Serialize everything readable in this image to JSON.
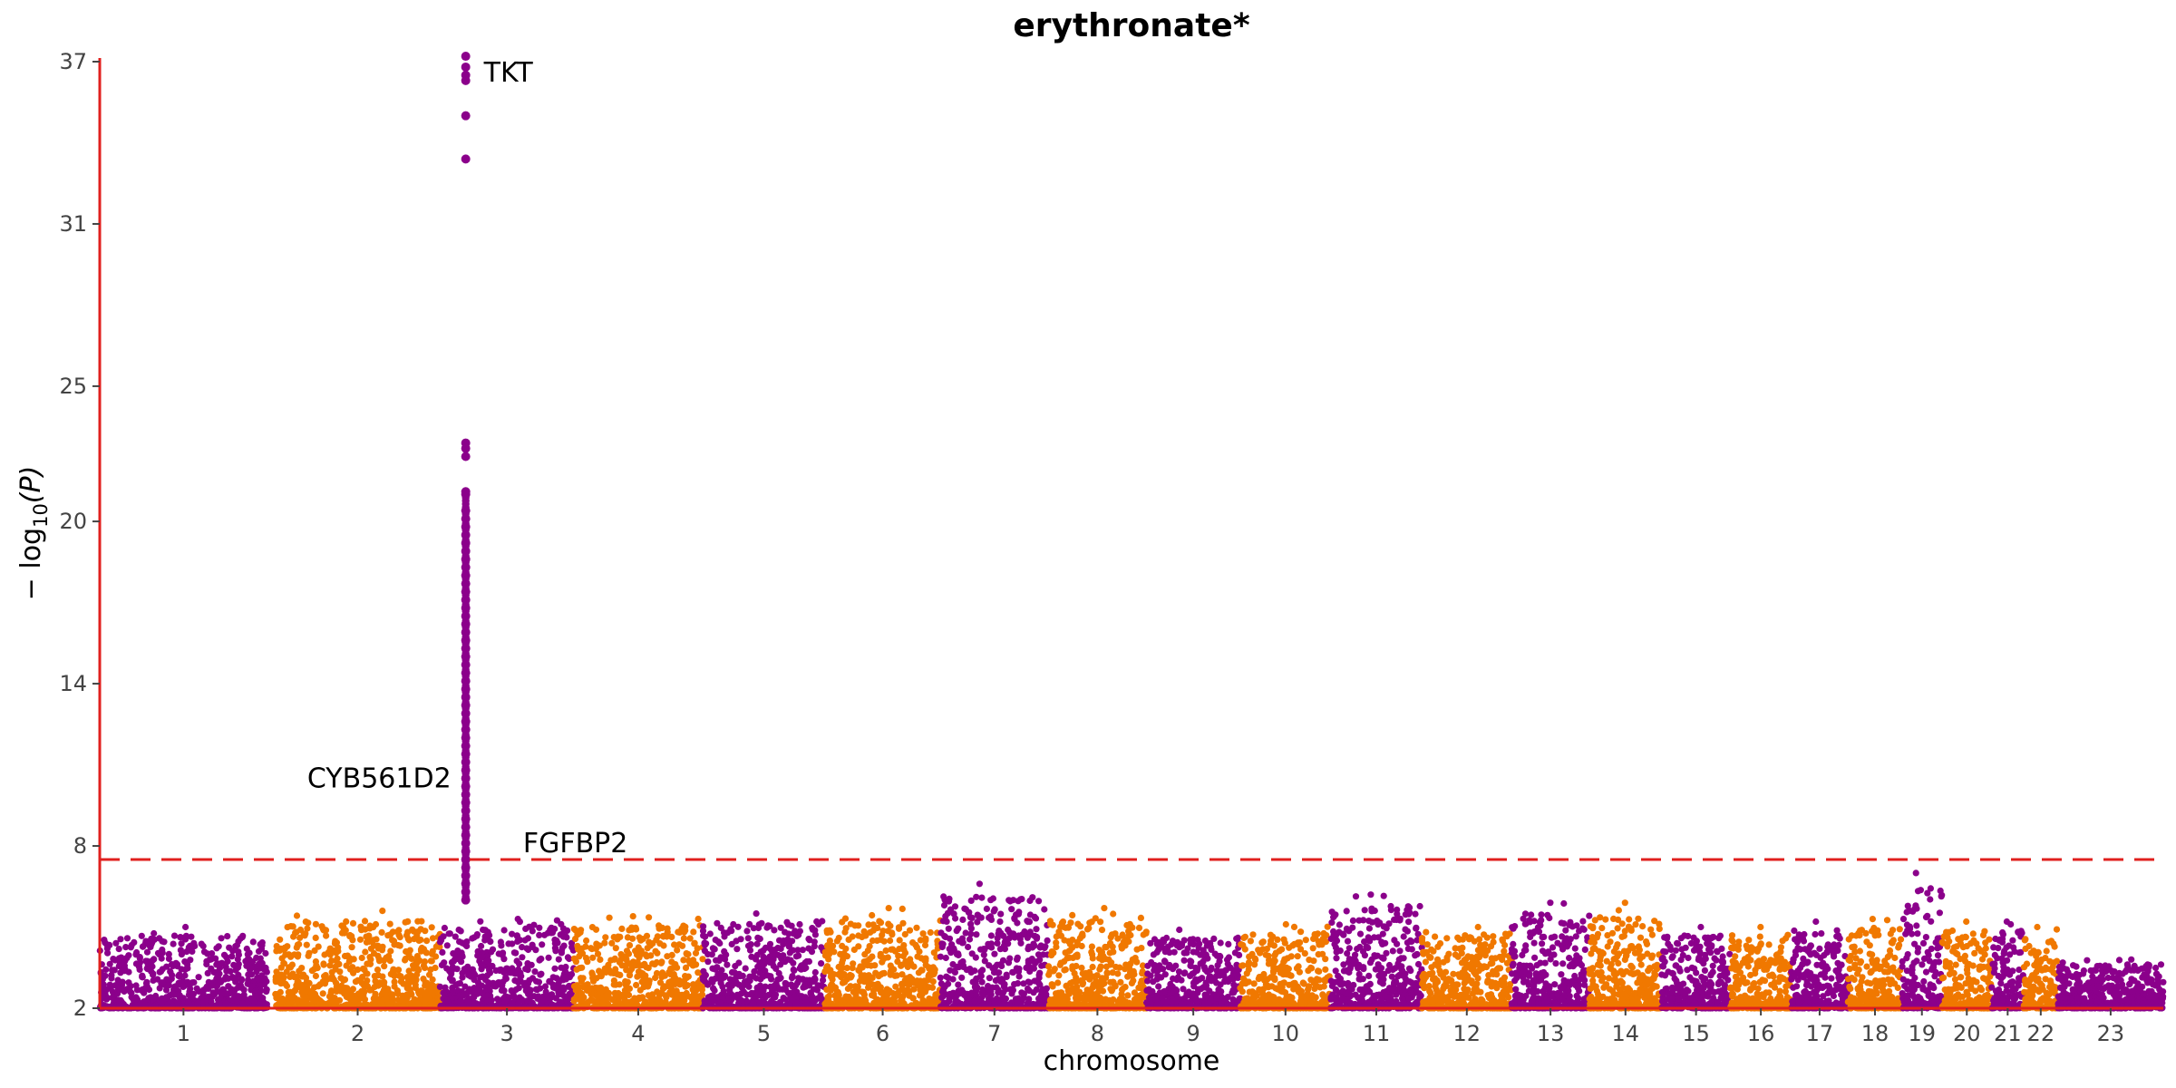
{
  "chart_data": {
    "type": "scatter",
    "subtype": "manhattan",
    "title": "erythronate*",
    "xlabel": "chromosome",
    "ylabel_parts": {
      "prefix": "− log",
      "subscript": "10",
      "suffix": "(P)"
    },
    "yticks": [
      2,
      8,
      14,
      20,
      25,
      31,
      37
    ],
    "ylim": [
      2,
      37
    ],
    "threshold": 7.5,
    "colors": {
      "odd": "#8B008B",
      "even": "#F07800",
      "axis": "#E0201E",
      "threshold": "#E0201E"
    },
    "chromosomes": [
      {
        "chr": "1",
        "label": "1",
        "range": [
          0,
          248
        ],
        "peak": 5.0
      },
      {
        "chr": "2",
        "label": "2",
        "range": [
          260,
          504
        ],
        "peak": 5.6
      },
      {
        "chr": "3",
        "label": "3",
        "range": [
          504,
          702
        ],
        "peak": 5.3
      },
      {
        "chr": "4",
        "label": "4",
        "range": [
          702,
          893
        ],
        "peak": 5.4
      },
      {
        "chr": "5",
        "label": "5",
        "range": [
          893,
          1074
        ],
        "peak": 5.5
      },
      {
        "chr": "6",
        "label": "6",
        "range": [
          1074,
          1245
        ],
        "peak": 5.7
      },
      {
        "chr": "7",
        "label": "7",
        "range": [
          1245,
          1405
        ],
        "peak": 6.6
      },
      {
        "chr": "8",
        "label": "8",
        "range": [
          1405,
          1550
        ],
        "peak": 5.7
      },
      {
        "chr": "9",
        "label": "9",
        "range": [
          1550,
          1689
        ],
        "peak": 4.9
      },
      {
        "chr": "10",
        "label": "10",
        "range": [
          1689,
          1823
        ],
        "peak": 5.1
      },
      {
        "chr": "11",
        "label": "11",
        "range": [
          1823,
          1958
        ],
        "peak": 6.2
      },
      {
        "chr": "12",
        "label": "12",
        "range": [
          1958,
          2091
        ],
        "peak": 5.0
      },
      {
        "chr": "13",
        "label": "13",
        "range": [
          2091,
          2206
        ],
        "peak": 5.9
      },
      {
        "chr": "14",
        "label": "14",
        "range": [
          2206,
          2313
        ],
        "peak": 5.9
      },
      {
        "chr": "15",
        "label": "15",
        "range": [
          2313,
          2415
        ],
        "peak": 5.0
      },
      {
        "chr": "16",
        "label": "16",
        "range": [
          2415,
          2505
        ],
        "peak": 5.0
      },
      {
        "chr": "17",
        "label": "17",
        "range": [
          2505,
          2589
        ],
        "peak": 5.2
      },
      {
        "chr": "18",
        "label": "18",
        "range": [
          2589,
          2669
        ],
        "peak": 5.3
      },
      {
        "chr": "19",
        "label": "19",
        "range": [
          2669,
          2728
        ],
        "peak": 7.0
      },
      {
        "chr": "20",
        "label": "20",
        "range": [
          2728,
          2802
        ],
        "peak": 5.2
      },
      {
        "chr": "21",
        "label": "21",
        "range": [
          2802,
          2849
        ],
        "peak": 5.2
      },
      {
        "chr": "22",
        "label": "22",
        "range": [
          2849,
          2900
        ],
        "peak": 5.0
      },
      {
        "chr": "23",
        "label": "23",
        "range": [
          2900,
          3056
        ],
        "peak": 3.8
      }
    ],
    "peak_snp_column": {
      "chr": "3",
      "x": 542,
      "values": [
        37.2,
        36.8,
        36.5,
        36.3,
        35.0,
        33.4,
        22.9,
        22.7,
        22.4,
        21.1,
        21.0,
        20.4,
        20.1,
        19.8,
        19.5,
        19.2,
        18.9,
        18.6,
        18.3,
        18.0,
        17.7,
        17.4,
        17.1,
        16.8,
        16.5,
        16.2,
        15.9,
        15.6,
        15.3,
        15.0,
        14.7,
        14.4,
        14.1,
        13.8,
        13.5,
        13.2,
        12.9,
        12.6,
        12.3,
        12.0,
        11.7,
        11.4,
        11.1,
        10.8,
        10.5,
        10.2,
        9.9,
        9.6,
        9.3,
        9.0,
        8.7,
        8.4,
        8.1,
        7.8,
        7.5,
        7.2,
        6.9,
        6.6,
        6.3,
        6.0
      ]
    },
    "annotations": [
      {
        "gene": "TKT",
        "x": 542,
        "y": 36.6,
        "side": "right"
      },
      {
        "gene": "CYB561D2",
        "x": 542,
        "y": 10.5,
        "side": "left"
      },
      {
        "gene": "FGFBP2",
        "x": 600,
        "y": 8.1,
        "side": "right"
      }
    ]
  }
}
